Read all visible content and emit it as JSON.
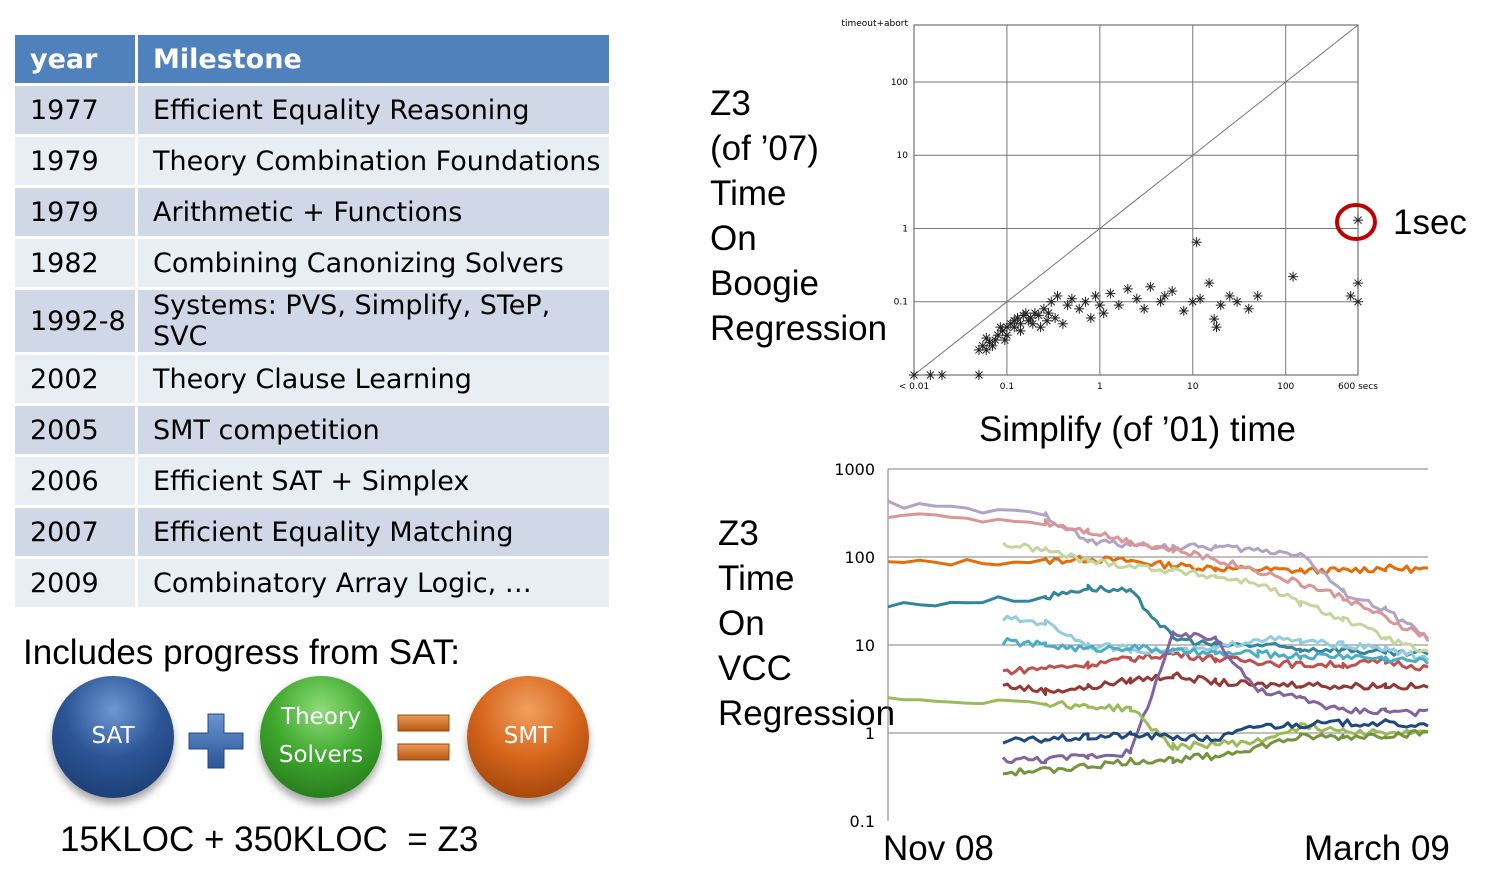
{
  "table": {
    "headers": [
      "year",
      "Milestone"
    ],
    "rows": [
      {
        "year": "1977",
        "milestone": "Efficient Equality Reasoning"
      },
      {
        "year": "1979",
        "milestone": "Theory Combination Foundations"
      },
      {
        "year": "1979",
        "milestone": "Arithmetic + Functions"
      },
      {
        "year": "1982",
        "milestone": "Combining Canonizing Solvers"
      },
      {
        "year": "1992-8",
        "milestone": "Systems: PVS, Simplify, STeP, SVC"
      },
      {
        "year": "2002",
        "milestone": "Theory Clause Learning"
      },
      {
        "year": "2005",
        "milestone": "SMT competition"
      },
      {
        "year": "2006",
        "milestone": "Efficient SAT + Simplex"
      },
      {
        "year": "2007",
        "milestone": "Efficient Equality Matching"
      },
      {
        "year": "2009",
        "milestone": "Combinatory Array Logic, …"
      }
    ],
    "colors": {
      "header": "#4f81bd",
      "row_dark": "#d0d8e8",
      "row_light": "#e9edf4"
    }
  },
  "sat_section": {
    "heading": "Includes progress from SAT:",
    "balls": {
      "sat": "SAT",
      "theory_line1": "Theory",
      "theory_line2": "Solvers",
      "smt": "SMT"
    },
    "kloc_equation": "15KLOC + 350KLOC  = Z3"
  },
  "scatter_label": {
    "lines": [
      "Z3",
      "(of ’07)",
      "Time",
      "On",
      "Boogie",
      "Regression"
    ],
    "x_title": "Simplify (of ’01) time",
    "callout": "1sec"
  },
  "line_label": {
    "lines": [
      "Z3",
      "Time",
      "On",
      "VCC",
      "Regression"
    ],
    "x_start": "Nov 08",
    "x_end": "March 09"
  },
  "chart_data": [
    {
      "type": "scatter",
      "xlabel": "Simplify (of ’01) time",
      "ylabel": "Z3 (of ’07) Time On Boogie Regression",
      "x_scale": "log",
      "y_scale": "log",
      "x_tick_labels": [
        "< 0.01",
        "0.1",
        "1",
        "10",
        "100",
        "600 secs"
      ],
      "y_tick_labels": [
        "0.1",
        "1",
        "10",
        "100",
        "timeout+abort"
      ],
      "grid": true,
      "diagonal": true,
      "annotation": "1sec",
      "points": [
        [
          0.01,
          0.01
        ],
        [
          0.015,
          0.01
        ],
        [
          0.02,
          0.01
        ],
        [
          0.05,
          0.01
        ],
        [
          0.05,
          0.022
        ],
        [
          0.055,
          0.025
        ],
        [
          0.06,
          0.022
        ],
        [
          0.065,
          0.028
        ],
        [
          0.07,
          0.025
        ],
        [
          0.075,
          0.03
        ],
        [
          0.06,
          0.032
        ],
        [
          0.08,
          0.035
        ],
        [
          0.09,
          0.04
        ],
        [
          0.1,
          0.045
        ],
        [
          0.11,
          0.05
        ],
        [
          0.12,
          0.055
        ],
        [
          0.085,
          0.045
        ],
        [
          0.095,
          0.03
        ],
        [
          0.13,
          0.06
        ],
        [
          0.14,
          0.05
        ],
        [
          0.15,
          0.065
        ],
        [
          0.16,
          0.07
        ],
        [
          0.17,
          0.055
        ],
        [
          0.18,
          0.06
        ],
        [
          0.2,
          0.07
        ],
        [
          0.22,
          0.065
        ],
        [
          0.25,
          0.08
        ],
        [
          0.28,
          0.07
        ],
        [
          0.3,
          0.1
        ],
        [
          0.33,
          0.06
        ],
        [
          0.35,
          0.12
        ],
        [
          0.4,
          0.05
        ],
        [
          0.45,
          0.09
        ],
        [
          0.5,
          0.11
        ],
        [
          0.12,
          0.045
        ],
        [
          0.1,
          0.035
        ],
        [
          0.14,
          0.04
        ],
        [
          0.19,
          0.05
        ],
        [
          0.23,
          0.045
        ],
        [
          0.27,
          0.055
        ],
        [
          0.6,
          0.08
        ],
        [
          0.7,
          0.1
        ],
        [
          0.8,
          0.06
        ],
        [
          0.9,
          0.12
        ],
        [
          1.0,
          0.09
        ],
        [
          1.1,
          0.07
        ],
        [
          1.3,
          0.13
        ],
        [
          1.6,
          0.09
        ],
        [
          2.0,
          0.15
        ],
        [
          2.5,
          0.11
        ],
        [
          3.0,
          0.08
        ],
        [
          3.5,
          0.16
        ],
        [
          4.5,
          0.1
        ],
        [
          5.0,
          0.12
        ],
        [
          6.0,
          0.14
        ],
        [
          8.0,
          0.075
        ],
        [
          10,
          0.1
        ],
        [
          12,
          0.11
        ],
        [
          15,
          0.18
        ],
        [
          17,
          0.058
        ],
        [
          18,
          0.045
        ],
        [
          20,
          0.09
        ],
        [
          25,
          0.12
        ],
        [
          30,
          0.1
        ],
        [
          40,
          0.08
        ],
        [
          50,
          0.12
        ],
        [
          11,
          0.65
        ],
        [
          120,
          0.22
        ],
        [
          500,
          0.12
        ],
        [
          600,
          0.18
        ],
        [
          600,
          0.1
        ],
        [
          600,
          1.3
        ]
      ]
    },
    {
      "type": "line",
      "xlabel": "",
      "ylabel": "Z3 Time On VCC Regression",
      "y_scale": "log",
      "ylim": [
        0.1,
        1000
      ],
      "y_tick_labels": [
        "1000",
        "100",
        "10",
        "1",
        "0.1"
      ],
      "x_range_labels": [
        "Nov 08",
        "March 09"
      ],
      "grid": true,
      "series": [
        {
          "color": "#e46c0a",
          "values": [
            85,
            90,
            95,
            90,
            80,
            75,
            72,
            70,
            70,
            75,
            72
          ]
        },
        {
          "color": "#c0504d",
          "values": [
            5,
            5.5,
            6,
            7,
            8,
            7,
            6.5,
            6,
            6,
            6.5,
            5.5
          ]
        },
        {
          "color": "#953735",
          "values": [
            3.5,
            3,
            3.3,
            4,
            4.5,
            3.8,
            3.5,
            3.6,
            3.4,
            3.5,
            3.3
          ]
        },
        {
          "color": "#31859c",
          "values": [
            28,
            35,
            45,
            40,
            12,
            10,
            10,
            9,
            9,
            8,
            8
          ]
        },
        {
          "color": "#93cddd",
          "values": [
            20,
            18,
            10,
            9,
            8.5,
            9,
            12,
            11,
            10,
            9,
            7
          ]
        },
        {
          "color": "#4bacc6",
          "values": [
            11,
            10,
            9,
            9.5,
            8.5,
            8,
            8,
            7.5,
            7.5,
            7,
            6.5
          ]
        },
        {
          "color": "#b3a2c7",
          "values": [
            400,
            300,
            150,
            140,
            130,
            130,
            120,
            110,
            40,
            25,
            12
          ]
        },
        {
          "color": "#8064a2",
          "values": [
            0.5,
            0.5,
            0.55,
            0.6,
            13,
            12,
            3,
            2.5,
            1.8,
            1.8,
            1.7
          ]
        },
        {
          "color": "#c3d69b",
          "values": [
            140,
            120,
            90,
            80,
            70,
            60,
            50,
            30,
            20,
            12,
            8
          ]
        },
        {
          "color": "#9bbb59",
          "values": [
            2.5,
            2.2,
            2,
            1.9,
            0.7,
            0.75,
            0.8,
            1.2,
            1.1,
            1.0,
            1.0
          ]
        },
        {
          "color": "#77933c",
          "values": [
            0.35,
            0.38,
            0.42,
            0.48,
            0.5,
            0.55,
            0.7,
            0.9,
            0.9,
            0.95,
            1.0
          ]
        },
        {
          "color": "#1f497d",
          "values": [
            0.8,
            0.85,
            0.9,
            0.95,
            0.9,
            0.85,
            1.2,
            1.25,
            1.3,
            1.3,
            1.2
          ]
        },
        {
          "color": "#d99694",
          "values": [
            300,
            250,
            200,
            150,
            120,
            95,
            70,
            50,
            35,
            20,
            12
          ]
        }
      ]
    }
  ]
}
